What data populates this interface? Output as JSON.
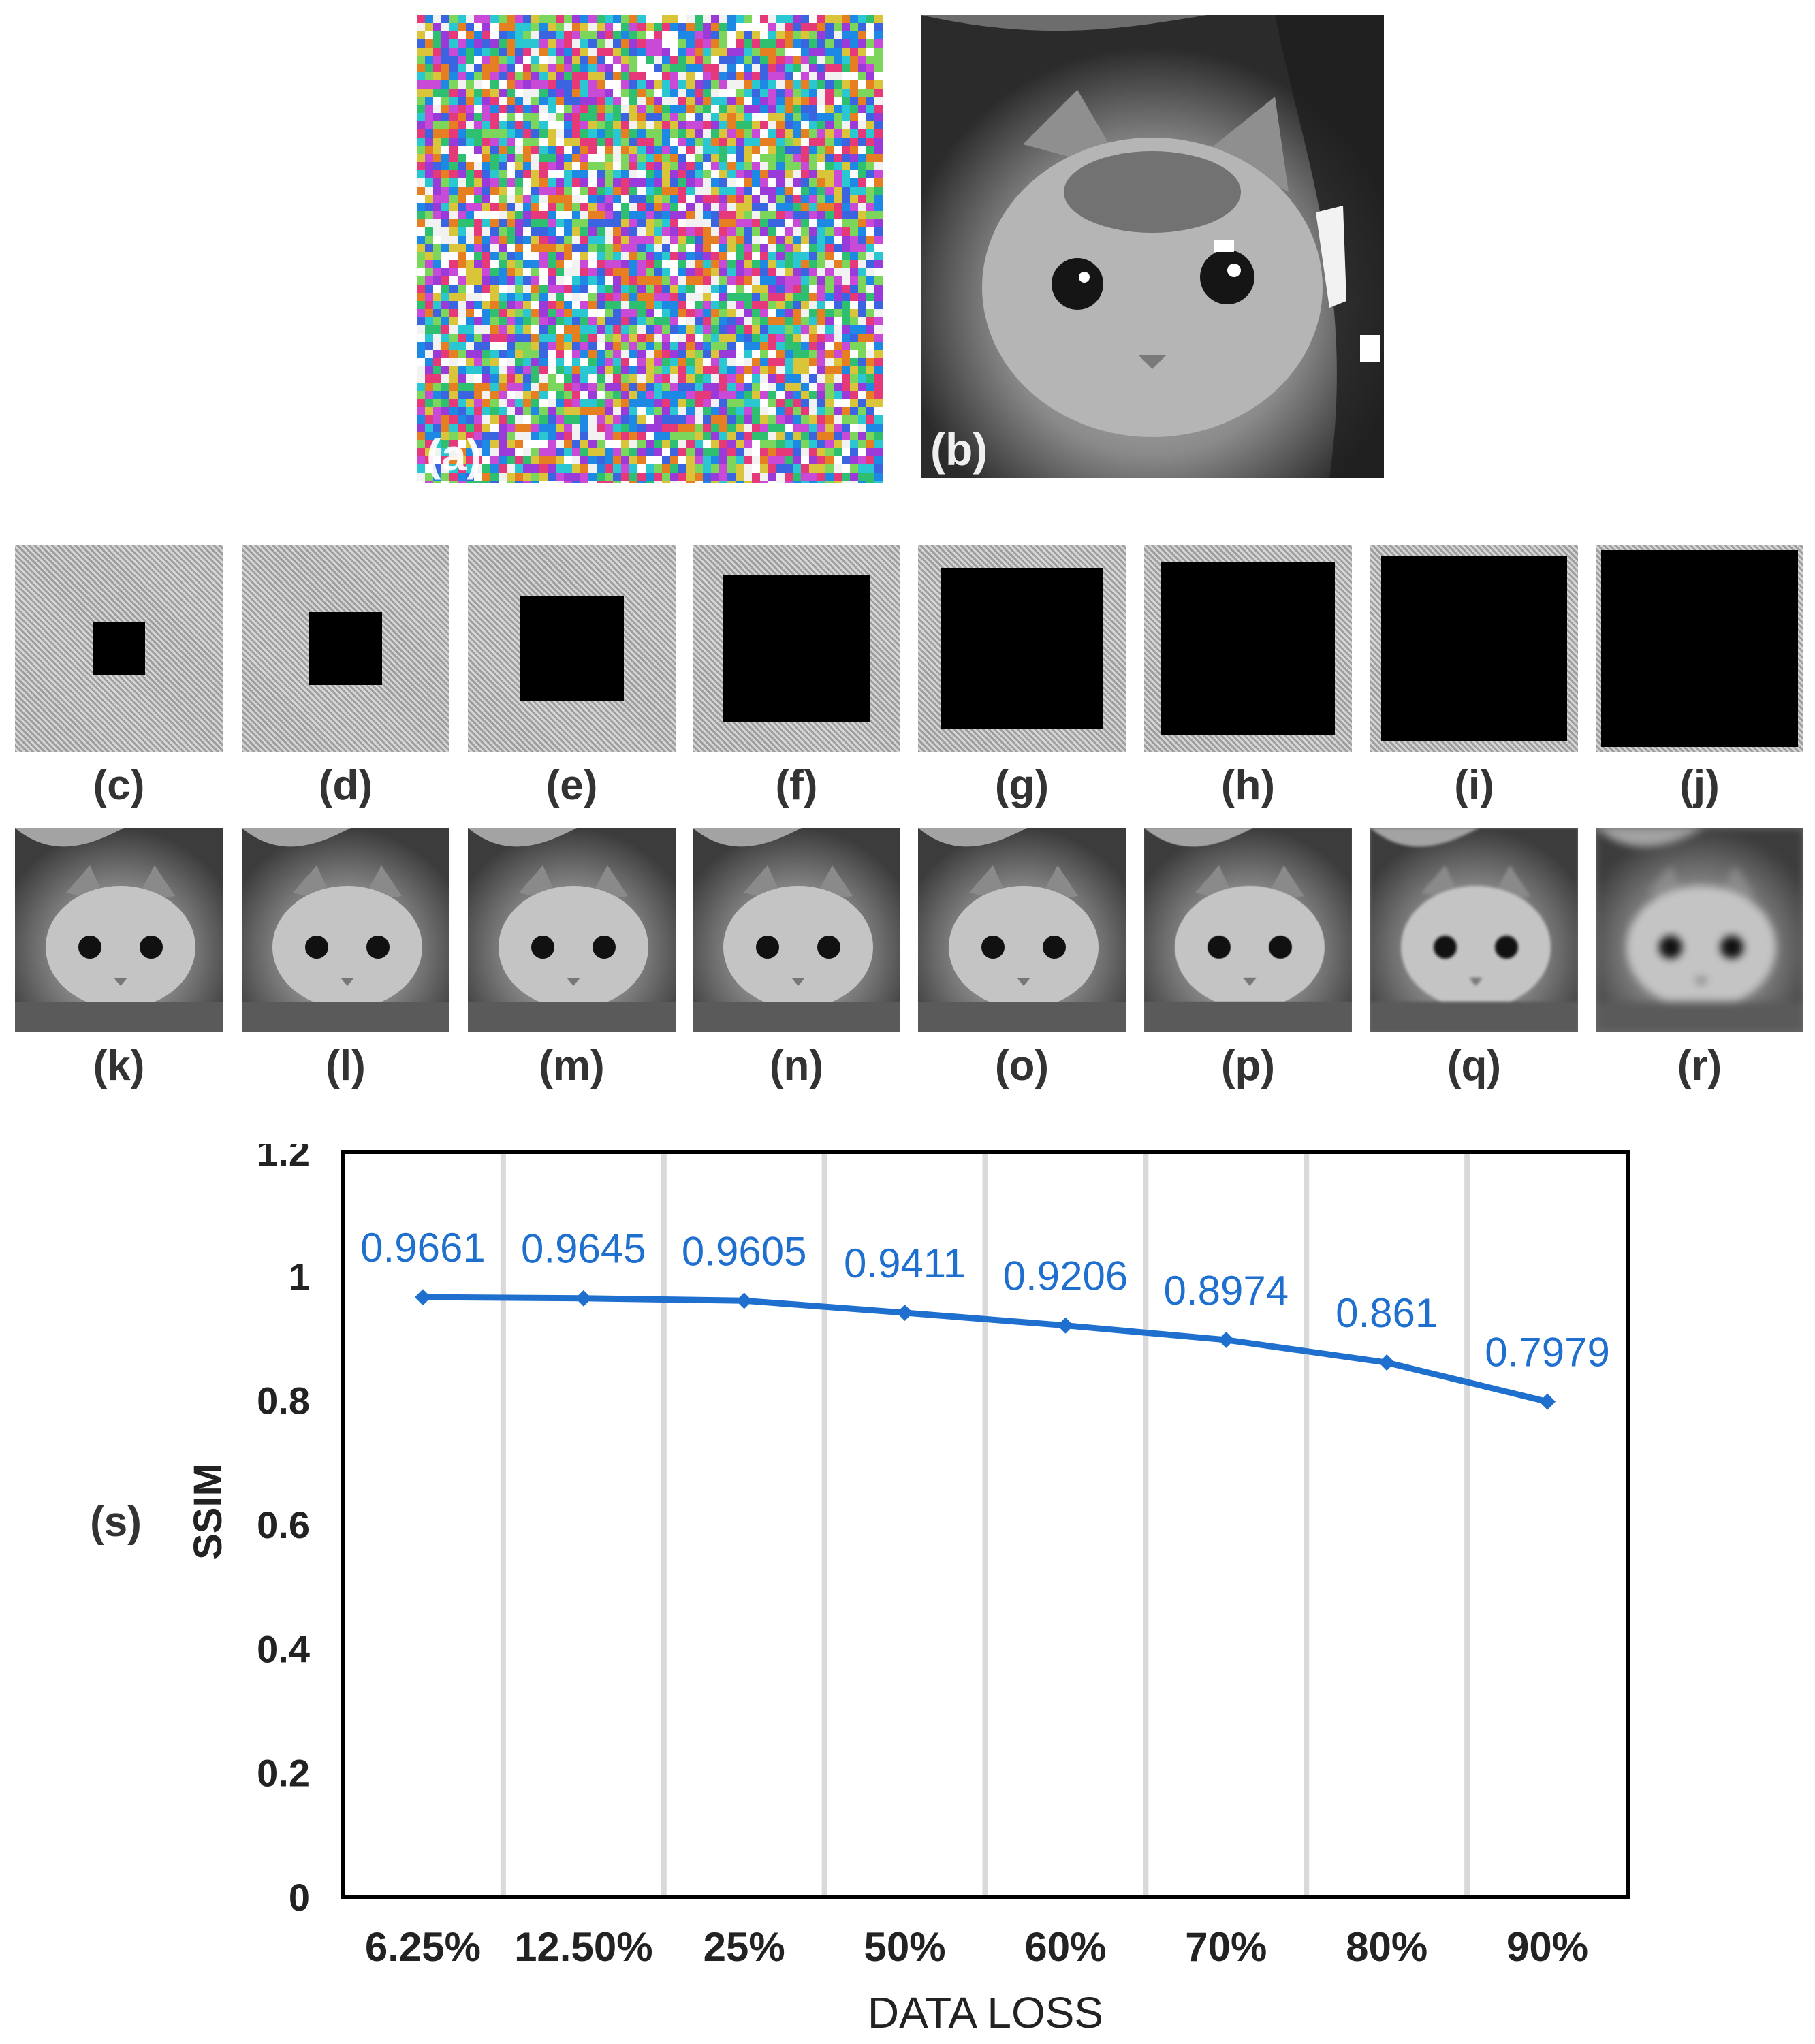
{
  "figure": {
    "top_panels": [
      {
        "label": "(a)",
        "description_icon": "noise-image"
      },
      {
        "label": "(b)",
        "description_icon": "cat-image"
      }
    ],
    "loss_panels": [
      {
        "label": "(c)",
        "hole_fraction": 0.0625
      },
      {
        "label": "(d)",
        "hole_fraction": 0.125
      },
      {
        "label": "(e)",
        "hole_fraction": 0.25
      },
      {
        "label": "(f)",
        "hole_fraction": 0.5
      },
      {
        "label": "(g)",
        "hole_fraction": 0.6
      },
      {
        "label": "(h)",
        "hole_fraction": 0.7
      },
      {
        "label": "(i)",
        "hole_fraction": 0.8
      },
      {
        "label": "(j)",
        "hole_fraction": 0.9
      }
    ],
    "recon_panels": [
      {
        "label": "(k)"
      },
      {
        "label": "(l)"
      },
      {
        "label": "(m)"
      },
      {
        "label": "(n)"
      },
      {
        "label": "(o)"
      },
      {
        "label": "(p)"
      },
      {
        "label": "(q)"
      },
      {
        "label": "(r)"
      }
    ],
    "chart_panel_label": "(s)"
  },
  "chart_data": {
    "type": "line",
    "title": "",
    "xlabel": "DATA LOSS",
    "ylabel": "SSIM",
    "categories": [
      "6.25%",
      "12.50%",
      "25%",
      "50%",
      "60%",
      "70%",
      "80%",
      "90%"
    ],
    "series": [
      {
        "name": "SSIM",
        "values": [
          0.9661,
          0.9645,
          0.9605,
          0.9411,
          0.9206,
          0.8974,
          0.861,
          0.7979
        ],
        "color": "#1f6fcf"
      }
    ],
    "data_labels": [
      "0.9661",
      "0.9645",
      "0.9605",
      "0.9411",
      "0.9206",
      "0.8974",
      "0.861",
      "0.7979"
    ],
    "ylim": [
      0,
      1.2
    ],
    "yticks": [
      0,
      0.2,
      0.4,
      0.6,
      0.8,
      1,
      1.2
    ],
    "ytick_labels": [
      "0",
      "0.2",
      "0.4",
      "0.6",
      "0.8",
      "1",
      "1.2"
    ],
    "grid": "vertical"
  },
  "colors": {
    "series": "#1f6fcf",
    "axis": "#000000",
    "grid": "#d9d9d9",
    "text": "#222222"
  }
}
